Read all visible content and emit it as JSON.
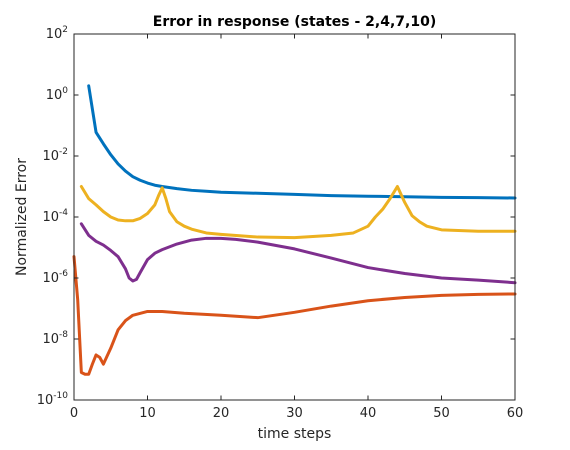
{
  "chart_data": {
    "type": "line",
    "title": "Error in response (states - 2,4,7,10)",
    "xlabel": "time steps",
    "ylabel": "Normalized Error",
    "xlim": [
      0,
      60
    ],
    "ylim": [
      1e-10,
      100
    ],
    "yscale": "log",
    "xticks": [
      0,
      10,
      20,
      30,
      40,
      50,
      60
    ],
    "yticks": [
      {
        "base": "10",
        "exp": "-10",
        "value": 1e-10
      },
      {
        "base": "10",
        "exp": "-8",
        "value": 1e-08
      },
      {
        "base": "10",
        "exp": "-6",
        "value": 1e-06
      },
      {
        "base": "10",
        "exp": "-4",
        "value": 0.0001
      },
      {
        "base": "10",
        "exp": "-2",
        "value": 0.01
      },
      {
        "base": "10",
        "exp": "0",
        "value": 1
      },
      {
        "base": "10",
        "exp": "2",
        "value": 100
      }
    ],
    "grid": false,
    "box": true,
    "series": [
      {
        "color": "#0072BD",
        "x": [
          2,
          3,
          4,
          5,
          6,
          7,
          8,
          9,
          10,
          11,
          12,
          14,
          16,
          18,
          20,
          25,
          30,
          35,
          40,
          45,
          50,
          55,
          60
        ],
        "y": [
          2.0,
          0.06,
          0.025,
          0.011,
          0.0055,
          0.0032,
          0.0021,
          0.0016,
          0.0013,
          0.0011,
          0.001,
          0.00085,
          0.00075,
          0.0007,
          0.00065,
          0.0006,
          0.00055,
          0.0005,
          0.00048,
          0.00046,
          0.00044,
          0.00043,
          0.00042
        ]
      },
      {
        "color": "#EDB120",
        "x": [
          1,
          2,
          3,
          4,
          5,
          6,
          7,
          8,
          9,
          10,
          11,
          11.5,
          12,
          12.5,
          13,
          14,
          15,
          16,
          18,
          20,
          25,
          30,
          35,
          38,
          40,
          41,
          42,
          43,
          44,
          45,
          46,
          47,
          48,
          50,
          55,
          60
        ],
        "y": [
          0.001,
          0.0004,
          0.00025,
          0.00015,
          0.0001,
          8e-05,
          7.5e-05,
          7.5e-05,
          9e-05,
          0.00013,
          0.00025,
          0.0005,
          0.0009,
          0.0004,
          0.00015,
          7e-05,
          5e-05,
          4e-05,
          3e-05,
          2.7e-05,
          2.2e-05,
          2.1e-05,
          2.5e-05,
          3e-05,
          5e-05,
          0.0001,
          0.00018,
          0.0004,
          0.001,
          0.0003,
          0.00011,
          7e-05,
          5e-05,
          3.8e-05,
          3.4e-05,
          3.4e-05
        ]
      },
      {
        "color": "#7E2F8E",
        "x": [
          1,
          2,
          3,
          4,
          5,
          6,
          7,
          7.5,
          8,
          8.5,
          9,
          10,
          11,
          12,
          14,
          16,
          18,
          20,
          22,
          25,
          30,
          35,
          40,
          45,
          50,
          55,
          60
        ],
        "y": [
          6e-05,
          2.5e-05,
          1.6e-05,
          1.2e-05,
          8e-06,
          5e-06,
          2e-06,
          1e-06,
          8e-07,
          9e-07,
          1.5e-06,
          4e-06,
          6.5e-06,
          8.5e-06,
          1.3e-05,
          1.75e-05,
          2e-05,
          2e-05,
          1.85e-05,
          1.5e-05,
          9e-06,
          4.5e-06,
          2.2e-06,
          1.4e-06,
          1e-06,
          8.5e-07,
          7e-07
        ]
      },
      {
        "color": "#D95319",
        "x": [
          0,
          0.5,
          1,
          1.5,
          2,
          2.5,
          3,
          3.5,
          4,
          5,
          6,
          7,
          8,
          10,
          12,
          15,
          20,
          25,
          30,
          35,
          40,
          45,
          50,
          55,
          60
        ],
        "y": [
          5e-06,
          2e-07,
          8e-10,
          7e-10,
          7e-10,
          1.5e-09,
          3e-09,
          2.5e-09,
          1.5e-09,
          5e-09,
          2e-08,
          4e-08,
          6e-08,
          8e-08,
          8e-08,
          7e-08,
          6e-08,
          5e-08,
          7.5e-08,
          1.2e-07,
          1.8e-07,
          2.3e-07,
          2.7e-07,
          2.9e-07,
          3e-07
        ]
      }
    ]
  }
}
